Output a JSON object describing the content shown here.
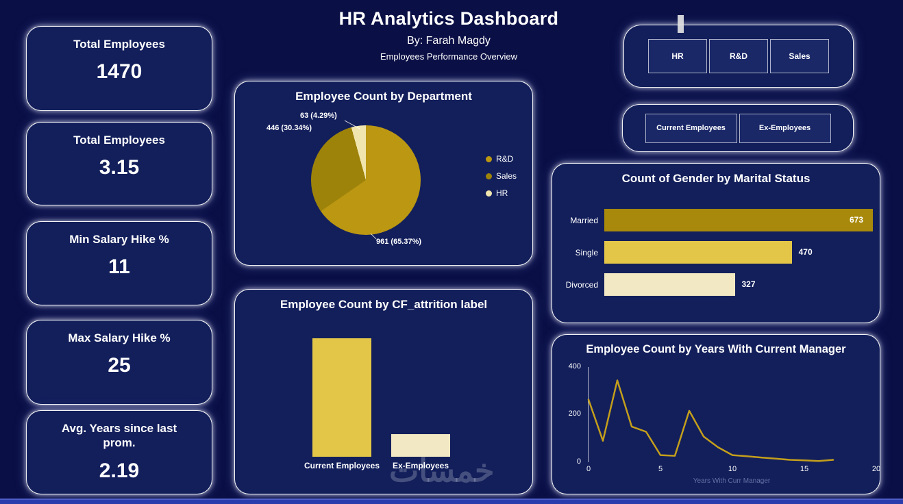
{
  "header": {
    "title": "HR Analytics Dashboard",
    "subtitle": "By: Farah Magdy",
    "tagline": "Employees Performance Overview"
  },
  "kpis": [
    {
      "label": "Total Employees",
      "value": "1470"
    },
    {
      "label": "Total Employees",
      "value": "3.15"
    },
    {
      "label": "Min Salary Hike %",
      "value": "11"
    },
    {
      "label": "Max Salary Hike %",
      "value": "25"
    },
    {
      "label": "Avg. Years since last prom.",
      "value": "2.19"
    }
  ],
  "slicers": {
    "department": {
      "options": [
        "HR",
        "R&D",
        "Sales"
      ]
    },
    "status": {
      "options": [
        "Current Employees",
        "Ex-Employees"
      ]
    }
  },
  "watermark": "خمسات",
  "chart_data": [
    {
      "id": "department_pie",
      "type": "pie",
      "title": "Employee Count by Department",
      "slices": [
        {
          "label": "R&D",
          "value": 961,
          "pct": 65.37,
          "color": "#BB9712",
          "data_label": "961 (65.37%)"
        },
        {
          "label": "Sales",
          "value": 446,
          "pct": 30.34,
          "color": "#9E830A",
          "data_label": "446 (30.34%)"
        },
        {
          "label": "HR",
          "value": 63,
          "pct": 4.29,
          "color": "#F0E5AE",
          "data_label": "63 (4.29%)"
        }
      ],
      "legend_position": "right"
    },
    {
      "id": "attrition_bar",
      "type": "bar",
      "title": "Employee Count by CF_attrition label",
      "categories": [
        "Current Employees",
        "Ex-Employees"
      ],
      "values": [
        1233,
        237
      ],
      "colors": [
        "#E3C648",
        "#F2E9C4"
      ],
      "ylim": [
        0,
        1300
      ]
    },
    {
      "id": "marital_bar",
      "type": "bar",
      "orientation": "horizontal",
      "title": "Count of Gender by Marital Status",
      "categories": [
        "Married",
        "Single",
        "Divorced"
      ],
      "values": [
        673,
        470,
        327
      ],
      "colors": [
        "#A8890B",
        "#E3C648",
        "#F2E9C4"
      ],
      "xlim": [
        0,
        673
      ]
    },
    {
      "id": "manager_line",
      "type": "line",
      "title": "Employee Count by Years With Current Manager",
      "x": [
        0,
        1,
        2,
        3,
        4,
        5,
        6,
        7,
        8,
        9,
        10,
        11,
        12,
        13,
        14,
        15,
        16,
        17
      ],
      "values": [
        263,
        90,
        344,
        150,
        128,
        30,
        27,
        216,
        108,
        63,
        30,
        25,
        20,
        15,
        10,
        8,
        5,
        10
      ],
      "line_color": "#C49F1B",
      "xlabel": "Years With Curr Manager",
      "xlim": [
        0,
        20
      ],
      "ylim": [
        0,
        400
      ],
      "yticks": [
        0,
        200,
        400
      ],
      "xticks": [
        0,
        5,
        10,
        15,
        20
      ]
    }
  ]
}
